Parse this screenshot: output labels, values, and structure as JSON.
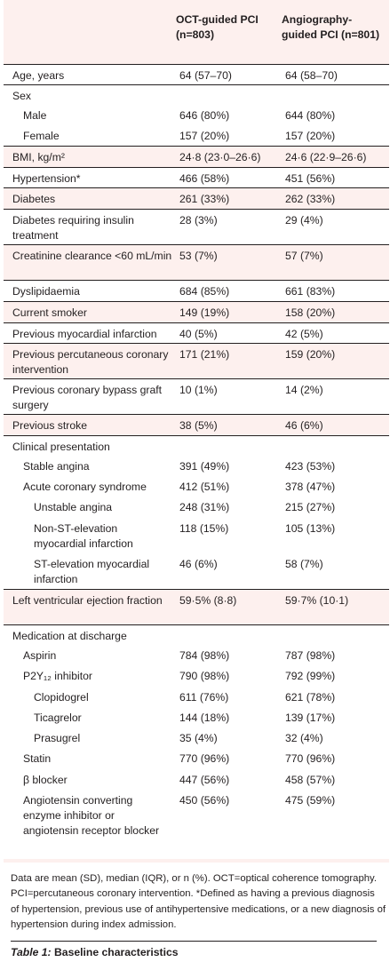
{
  "header": {
    "col1": "OCT-guided PCI (n=803)",
    "col2": "Angiography-guided PCI (n=801)"
  },
  "rows": [
    {
      "label": "Age, years",
      "indent": 0,
      "v1": "64 (57–70)",
      "v2": "64 (58–70)",
      "bg": "white"
    },
    {
      "label": "Sex",
      "indent": 0,
      "v1": "",
      "v2": "",
      "bg": "white"
    },
    {
      "label": "Male",
      "indent": 1,
      "v1": "646 (80%)",
      "v2": "644 (80%)",
      "bg": "white"
    },
    {
      "label": "Female",
      "indent": 1,
      "v1": "157 (20%)",
      "v2": "157 (20%)",
      "bg": "white"
    },
    {
      "label": "BMI, kg/m²",
      "indent": 0,
      "v1": "24·8 (23·0–26·6)",
      "v2": "24·6 (22·9–26·6)",
      "bg": "tinted"
    },
    {
      "label": "Hypertension*",
      "indent": 0,
      "v1": "466 (58%)",
      "v2": "451 (56%)",
      "bg": "white"
    },
    {
      "label": "Diabetes",
      "indent": 0,
      "v1": "261 (33%)",
      "v2": "262 (33%)",
      "bg": "tinted"
    },
    {
      "label": "Diabetes requiring insulin treatment",
      "indent": 0,
      "v1": "28 (3%)",
      "v2": "29 (4%)",
      "bg": "white"
    },
    {
      "label": "Creatinine clearance <60 mL/min",
      "indent": 0,
      "v1": "53 (7%)",
      "v2": "57 (7%)",
      "bg": "tinted"
    },
    {
      "label": "Dyslipidaemia",
      "indent": 0,
      "v1": "684 (85%)",
      "v2": "661 (83%)",
      "bg": "white"
    },
    {
      "label": "Current smoker",
      "indent": 0,
      "v1": "149 (19%)",
      "v2": "158 (20%)",
      "bg": "tinted"
    },
    {
      "label": "Previous myocardial infarction",
      "indent": 0,
      "v1": "40 (5%)",
      "v2": "42 (5%)",
      "bg": "white"
    },
    {
      "label": "Previous percutaneous coronary intervention",
      "indent": 0,
      "v1": "171 (21%)",
      "v2": "159 (20%)",
      "bg": "tinted"
    },
    {
      "label": "Previous coronary bypass graft surgery",
      "indent": 0,
      "v1": "10 (1%)",
      "v2": "14 (2%)",
      "bg": "white"
    },
    {
      "label": "Previous stroke",
      "indent": 0,
      "v1": "38 (5%)",
      "v2": "46 (6%)",
      "bg": "tinted"
    },
    {
      "label": "Clinical presentation",
      "indent": 0,
      "v1": "",
      "v2": "",
      "bg": "white"
    },
    {
      "label": "Stable angina",
      "indent": 1,
      "v1": "391 (49%)",
      "v2": "423 (53%)",
      "bg": "white"
    },
    {
      "label": "Acute coronary syndrome",
      "indent": 1,
      "v1": "412 (51%)",
      "v2": "378 (47%)",
      "bg": "white"
    },
    {
      "label": "Unstable angina",
      "indent": 2,
      "v1": "248 (31%)",
      "v2": "215 (27%)",
      "bg": "white"
    },
    {
      "label": "Non-ST-elevation myocardial infarction",
      "indent": 2,
      "v1": "118 (15%)",
      "v2": "105 (13%)",
      "bg": "white"
    },
    {
      "label": "ST-elevation myocardial infarction",
      "indent": 2,
      "v1": "46 (6%)",
      "v2": "58 (7%)",
      "bg": "white"
    },
    {
      "label": "Left ventricular ejection fraction",
      "indent": 0,
      "v1": "59·5% (8·8)",
      "v2": "59·7% (10·1)",
      "bg": "tinted"
    },
    {
      "label": "Medication at discharge",
      "indent": 0,
      "v1": "",
      "v2": "",
      "bg": "white"
    },
    {
      "label": "Aspirin",
      "indent": 1,
      "v1": "784 (98%)",
      "v2": "787 (98%)",
      "bg": "white"
    },
    {
      "label": "P2Y₁₂ inhibitor",
      "indent": 1,
      "v1": "790 (98%)",
      "v2": "792 (99%)",
      "bg": "white"
    },
    {
      "label": "Clopidogrel",
      "indent": 2,
      "v1": "611 (76%)",
      "v2": "621 (78%)",
      "bg": "white"
    },
    {
      "label": "Ticagrelor",
      "indent": 2,
      "v1": "144 (18%)",
      "v2": "139 (17%)",
      "bg": "white"
    },
    {
      "label": "Prasugrel",
      "indent": 2,
      "v1": "35 (4%)",
      "v2": "32 (4%)",
      "bg": "white"
    },
    {
      "label": "Statin",
      "indent": 1,
      "v1": "770 (96%)",
      "v2": "770 (96%)",
      "bg": "white"
    },
    {
      "label": "β blocker",
      "indent": 1,
      "v1": "447 (56%)",
      "v2": "458 (57%)",
      "bg": "white"
    },
    {
      "label": "Angiotensin converting enzyme inhibitor or angiotensin receptor blocker",
      "indent": 1,
      "v1": "450 (56%)",
      "v2": "475 (59%)",
      "bg": "white"
    }
  ],
  "footnote": "Data are mean (SD), median (IQR), or n (%). OCT=optical coherence tomography. PCI=percutaneous coronary intervention. *Defined as having a previous diagnosis of hypertension, previous use of antihypertensive medications, or a new diagnosis of hypertension during index admission.",
  "caption": {
    "label": "Table 1:",
    "text": " Baseline characteristics"
  },
  "colors": {
    "tint": "#fdf0ee",
    "text": "#231f20",
    "rule": "#231f20"
  }
}
